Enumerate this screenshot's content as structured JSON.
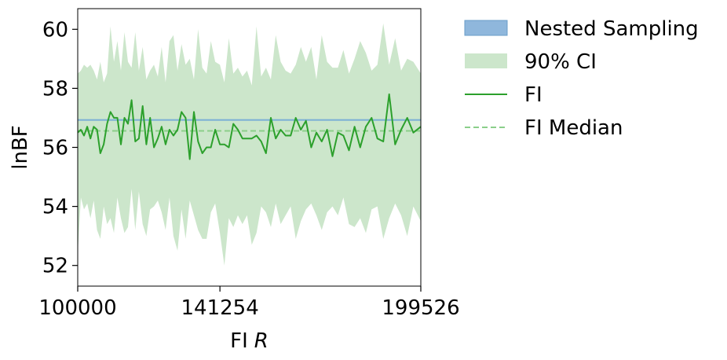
{
  "chart_data": {
    "type": "line",
    "xlabel_main": "FI",
    "xlabel_var": "R",
    "ylabel": "lnBF",
    "xlim": [
      100000,
      199526
    ],
    "ylim": [
      51.3,
      60.7
    ],
    "yticks": [
      52,
      54,
      56,
      58,
      60
    ],
    "xticks": [
      100000,
      141254,
      199526
    ],
    "grid": false,
    "legend_position": "outside-right",
    "colors": {
      "nested": "#8fb7dc",
      "nested_edge": "#6a9dc9",
      "nested_line": "#7aaed6",
      "ci": "#cce6cb",
      "fi": "#2ca02c",
      "fi_median": "#8bcf8a"
    },
    "nested_sampling": 56.93,
    "fi_median": 56.56,
    "series": [
      {
        "name": "FI",
        "x": [
          100000,
          100910,
          101829,
          102757,
          103693,
          104638,
          105593,
          106556,
          107528,
          108509,
          109499,
          110498,
          111507,
          112524,
          113551,
          114586,
          115632,
          116686,
          117751,
          118825,
          119908,
          121002,
          122105,
          123219,
          124342,
          125476,
          126619,
          127773,
          128937,
          130111,
          131296,
          132491,
          133697,
          134913,
          136140,
          137378,
          138627,
          139887,
          141254,
          142537,
          143832,
          145138,
          146456,
          147786,
          149128,
          150482,
          151849,
          153228,
          154619,
          156023,
          157440,
          158869,
          160311,
          161767,
          163236,
          164718,
          166213,
          167722,
          169245,
          170782,
          172332,
          173897,
          175476,
          177069,
          178677,
          180300,
          181937,
          183588,
          185255,
          186937,
          188635,
          190348,
          192076,
          193820,
          195580,
          197356,
          199526
        ],
        "values": [
          56.5,
          56.6,
          56.4,
          56.7,
          56.3,
          56.7,
          56.6,
          55.8,
          56.1,
          56.8,
          57.2,
          57.0,
          57.0,
          56.1,
          57.0,
          56.8,
          57.6,
          56.2,
          56.3,
          57.4,
          56.1,
          57.0,
          56.0,
          56.3,
          56.7,
          56.1,
          56.6,
          56.4,
          56.6,
          57.2,
          57.0,
          55.6,
          57.2,
          56.2,
          55.8,
          56.0,
          56.0,
          56.6,
          56.1,
          56.1,
          56.0,
          56.8,
          56.6,
          56.3,
          56.3,
          56.3,
          56.4,
          56.2,
          55.8,
          57.0,
          56.3,
          56.6,
          56.4,
          56.4,
          57.0,
          56.6,
          56.9,
          56.0,
          56.5,
          56.2,
          56.6,
          55.7,
          56.5,
          56.4,
          55.9,
          56.7,
          56.0,
          56.7,
          57.0,
          56.3,
          56.2,
          57.8,
          56.1,
          56.6,
          57.0,
          56.5,
          56.7
        ]
      }
    ],
    "ci_upper": [
      58.5,
      58.6,
      58.8,
      58.7,
      58.8,
      58.6,
      58.3,
      58.9,
      58.2,
      58.5,
      60.1,
      58.9,
      59.6,
      58.6,
      59.9,
      58.9,
      58.7,
      59.9,
      58.6,
      59.4,
      58.3,
      58.6,
      58.8,
      58.4,
      59.4,
      58.2,
      59.6,
      59.8,
      58.6,
      59.5,
      58.8,
      59.0,
      58.3,
      60.0,
      58.7,
      58.5,
      59.6,
      58.9,
      58.8,
      58.2,
      59.7,
      58.5,
      58.7,
      58.4,
      58.6,
      58.1,
      60.1,
      58.4,
      58.7,
      58.3,
      59.8,
      58.9,
      58.6,
      58.5,
      58.8,
      59.4,
      58.9,
      59.4,
      58.3,
      59.8,
      58.9,
      58.7,
      58.7,
      59.3,
      58.5,
      59.0,
      59.6,
      59.2,
      58.6,
      58.8,
      60.2,
      58.8,
      59.7,
      58.6,
      59.0,
      58.9,
      58.5
    ],
    "ci_lower": [
      52.4,
      54.3,
      53.9,
      54.1,
      53.6,
      54.2,
      53.2,
      52.9,
      54.0,
      53.4,
      53.6,
      53.1,
      54.3,
      53.6,
      53.1,
      53.3,
      54.6,
      53.2,
      54.5,
      53.4,
      53.0,
      53.9,
      54.0,
      54.2,
      53.8,
      53.2,
      54.3,
      53.0,
      52.5,
      53.9,
      52.9,
      54.2,
      53.7,
      53.2,
      52.9,
      52.9,
      53.8,
      54.1,
      53.1,
      52.0,
      53.6,
      53.3,
      53.7,
      53.4,
      53.7,
      52.7,
      53.1,
      54.0,
      53.8,
      53.3,
      54.1,
      53.4,
      53.7,
      54.0,
      52.9,
      53.5,
      53.9,
      54.1,
      53.7,
      53.2,
      53.8,
      54.0,
      53.7,
      54.3,
      53.4,
      53.3,
      53.6,
      53.1,
      53.9,
      54.0,
      52.9,
      53.6,
      54.1,
      53.7,
      53.0,
      54.0,
      53.5
    ]
  },
  "legend": [
    {
      "label": "Nested Sampling",
      "kind": "patch-blue"
    },
    {
      "label": "90% CI",
      "kind": "patch-green"
    },
    {
      "label": "FI",
      "kind": "line-solid"
    },
    {
      "label": "FI Median",
      "kind": "line-dashed"
    }
  ]
}
